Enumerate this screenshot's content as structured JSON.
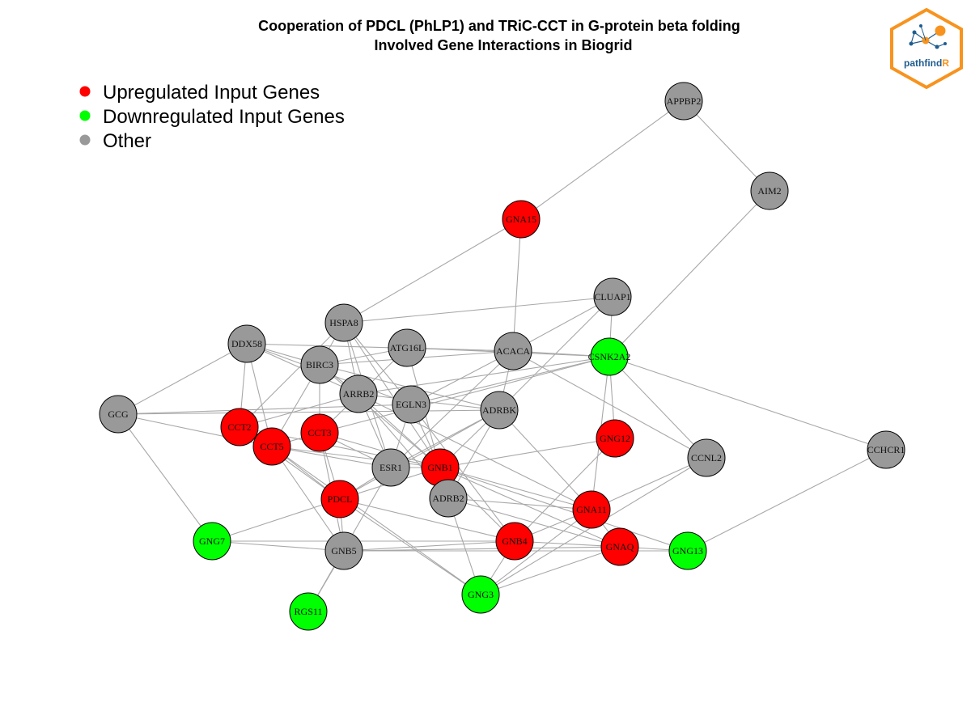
{
  "title": {
    "line1": "Cooperation of PDCL (PhLP1) and TRiC-CCT in G-protein beta folding",
    "line2": "Involved Gene Interactions in Biogrid"
  },
  "legend": [
    {
      "label": "Upregulated Input Genes",
      "color": "#ff0000"
    },
    {
      "label": "Downregulated Input Genes",
      "color": "#00ff00"
    },
    {
      "label": "Other",
      "color": "#999999"
    }
  ],
  "logo": {
    "text_main": "pathfind",
    "text_accent": "R",
    "border_color": "#f7931e",
    "main_color": "#1f5c8f",
    "accent_color": "#f7931e"
  },
  "category_colors": {
    "up": "#ff0000",
    "down": "#00ff00",
    "other": "#999999"
  },
  "edge_color": "#a8a8a8",
  "nodes": [
    {
      "id": "APPBP2",
      "type": "other"
    },
    {
      "id": "AIM2",
      "type": "other"
    },
    {
      "id": "GNA15",
      "type": "up"
    },
    {
      "id": "CLUAP1",
      "type": "other"
    },
    {
      "id": "HSPA8",
      "type": "other"
    },
    {
      "id": "DDX58",
      "type": "other"
    },
    {
      "id": "ATG16L",
      "type": "other"
    },
    {
      "id": "ACACA",
      "type": "other"
    },
    {
      "id": "CSNK2A2",
      "type": "down"
    },
    {
      "id": "BIRC3",
      "type": "other"
    },
    {
      "id": "ARRB2",
      "type": "other"
    },
    {
      "id": "EGLN3",
      "type": "other"
    },
    {
      "id": "ADRBK",
      "type": "other"
    },
    {
      "id": "GCG",
      "type": "other"
    },
    {
      "id": "CCT2",
      "type": "up"
    },
    {
      "id": "CCT3",
      "type": "up"
    },
    {
      "id": "CCT5",
      "type": "up"
    },
    {
      "id": "GNG12",
      "type": "up"
    },
    {
      "id": "CCNL2",
      "type": "other"
    },
    {
      "id": "CCHCR1",
      "type": "other"
    },
    {
      "id": "ESR1",
      "type": "other"
    },
    {
      "id": "GNB1",
      "type": "up"
    },
    {
      "id": "PDCL",
      "type": "up"
    },
    {
      "id": "ADRB2",
      "type": "other"
    },
    {
      "id": "GNA11",
      "type": "up"
    },
    {
      "id": "GNG7",
      "type": "down"
    },
    {
      "id": "GNB5",
      "type": "other"
    },
    {
      "id": "GNB4",
      "type": "up"
    },
    {
      "id": "GNAQ",
      "type": "up"
    },
    {
      "id": "GNG13",
      "type": "down"
    },
    {
      "id": "GNG3",
      "type": "down"
    },
    {
      "id": "RGS11",
      "type": "down"
    }
  ],
  "edges": [
    [
      "APPBP2",
      "AIM2"
    ],
    [
      "APPBP2",
      "GNA15"
    ],
    [
      "AIM2",
      "CSNK2A2"
    ],
    [
      "GNA15",
      "HSPA8"
    ],
    [
      "GNA15",
      "ACACA"
    ],
    [
      "HSPA8",
      "CLUAP1"
    ],
    [
      "CLUAP1",
      "CSNK2A2"
    ],
    [
      "CLUAP1",
      "ACACA"
    ],
    [
      "CLUAP1",
      "ADRBK"
    ],
    [
      "DDX58",
      "ACACA"
    ],
    [
      "DDX58",
      "ARRB2"
    ],
    [
      "DDX58",
      "CCT5"
    ],
    [
      "DDX58",
      "GCG"
    ],
    [
      "DDX58",
      "CCT2"
    ],
    [
      "DDX58",
      "BIRC3"
    ],
    [
      "DDX58",
      "EGLN3"
    ],
    [
      "HSPA8",
      "BIRC3"
    ],
    [
      "HSPA8",
      "ARRB2"
    ],
    [
      "HSPA8",
      "CCT2"
    ],
    [
      "HSPA8",
      "GNB1"
    ],
    [
      "HSPA8",
      "ESR1"
    ],
    [
      "HSPA8",
      "EGLN3"
    ],
    [
      "BIRC3",
      "CCT3"
    ],
    [
      "BIRC3",
      "CCT5"
    ],
    [
      "BIRC3",
      "ACACA"
    ],
    [
      "BIRC3",
      "GNB1"
    ],
    [
      "BIRC3",
      "ARRB2"
    ],
    [
      "BIRC3",
      "ADRBK"
    ],
    [
      "ATG16L",
      "ACACA"
    ],
    [
      "ATG16L",
      "CSNK2A2"
    ],
    [
      "ATG16L",
      "CCT3"
    ],
    [
      "ATG16L",
      "ADRB2"
    ],
    [
      "ATG16L",
      "BIRC3"
    ],
    [
      "ACACA",
      "CSNK2A2"
    ],
    [
      "ACACA",
      "EGLN3"
    ],
    [
      "ACACA",
      "ADRBK"
    ],
    [
      "ACACA",
      "CCNL2"
    ],
    [
      "ACACA",
      "ESR1"
    ],
    [
      "CSNK2A2",
      "GNG12"
    ],
    [
      "CSNK2A2",
      "CCNL2"
    ],
    [
      "CSNK2A2",
      "CCHCR1"
    ],
    [
      "CSNK2A2",
      "ARRB2"
    ],
    [
      "CSNK2A2",
      "EGLN3"
    ],
    [
      "CSNK2A2",
      "GNA11"
    ],
    [
      "CSNK2A2",
      "CCT3"
    ],
    [
      "GCG",
      "EGLN3"
    ],
    [
      "GCG",
      "CCT5"
    ],
    [
      "GCG",
      "GNG7"
    ],
    [
      "GCG",
      "ADRBK"
    ],
    [
      "CCT2",
      "PDCL"
    ],
    [
      "CCT2",
      "CCT5"
    ],
    [
      "CCT2",
      "GNB1"
    ],
    [
      "CCT2",
      "ARRB2"
    ],
    [
      "CCT5",
      "GNB5"
    ],
    [
      "CCT5",
      "ESR1"
    ],
    [
      "CCT5",
      "GNB1"
    ],
    [
      "CCT5",
      "PDCL"
    ],
    [
      "CCT5",
      "GNG3"
    ],
    [
      "CCT5",
      "CCT3"
    ],
    [
      "CCT3",
      "PDCL"
    ],
    [
      "CCT3",
      "GNB1"
    ],
    [
      "CCT3",
      "ESR1"
    ],
    [
      "CCT3",
      "GNB5"
    ],
    [
      "ARRB2",
      "ADRB2"
    ],
    [
      "ARRB2",
      "GNB1"
    ],
    [
      "ARRB2",
      "GNA11"
    ],
    [
      "ARRB2",
      "ESR1"
    ],
    [
      "ARRB2",
      "ADRBK"
    ],
    [
      "EGLN3",
      "ESR1"
    ],
    [
      "EGLN3",
      "GNB1"
    ],
    [
      "EGLN3",
      "GNB4"
    ],
    [
      "ADRBK",
      "ADRB2"
    ],
    [
      "ADRBK",
      "GNB1"
    ],
    [
      "ADRBK",
      "GNA11"
    ],
    [
      "ADRBK",
      "PDCL"
    ],
    [
      "ADRBK",
      "ESR1"
    ],
    [
      "GNG12",
      "GNB1"
    ],
    [
      "GNG12",
      "GNB4"
    ],
    [
      "CCNL2",
      "GNA11"
    ],
    [
      "CCNL2",
      "GNG3"
    ],
    [
      "CCHCR1",
      "GNG13"
    ],
    [
      "ESR1",
      "PDCL"
    ],
    [
      "ESR1",
      "GNB1"
    ],
    [
      "ESR1",
      "RGS11"
    ],
    [
      "GNB1",
      "GNB4"
    ],
    [
      "GNB1",
      "GNA11"
    ],
    [
      "GNB1",
      "GNAQ"
    ],
    [
      "GNB1",
      "GNG13"
    ],
    [
      "GNB1",
      "ADRB2"
    ],
    [
      "GNB1",
      "PDCL"
    ],
    [
      "PDCL",
      "GNB4"
    ],
    [
      "PDCL",
      "GNB5"
    ],
    [
      "PDCL",
      "GNG3"
    ],
    [
      "ADRB2",
      "GNG3"
    ],
    [
      "ADRB2",
      "GNA11"
    ],
    [
      "ADRB2",
      "GNAQ"
    ],
    [
      "GNA11",
      "GNB4"
    ],
    [
      "GNA11",
      "GNG3"
    ],
    [
      "GNA11",
      "GNAQ"
    ],
    [
      "GNG7",
      "GNB5"
    ],
    [
      "GNG7",
      "PDCL"
    ],
    [
      "GNG7",
      "GNB4"
    ],
    [
      "GNB5",
      "GNAQ"
    ],
    [
      "GNB5",
      "RGS11"
    ],
    [
      "GNB5",
      "GNG13"
    ],
    [
      "GNB5",
      "GNB4"
    ],
    [
      "GNB4",
      "GNAQ"
    ],
    [
      "GNB4",
      "GNG3"
    ],
    [
      "GNAQ",
      "GNG13"
    ],
    [
      "GNAQ",
      "GNG3"
    ]
  ]
}
